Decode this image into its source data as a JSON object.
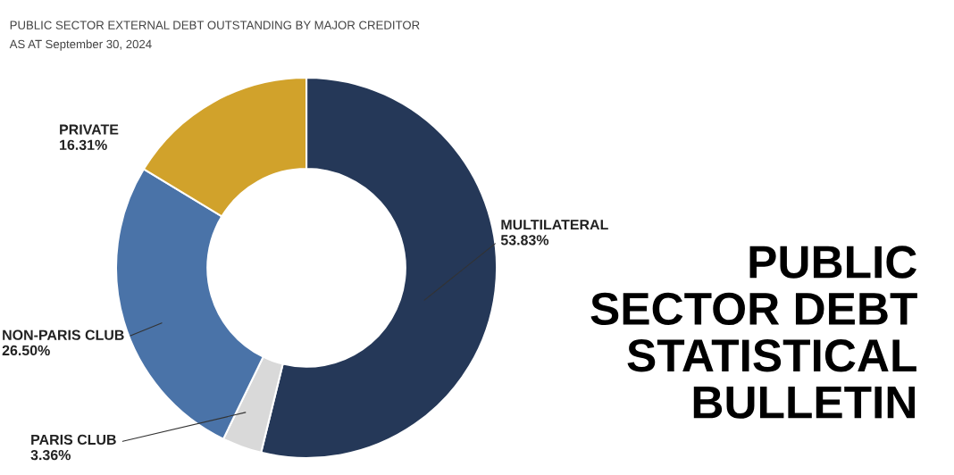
{
  "chart_data": {
    "type": "donut",
    "title": "PUBLIC SECTOR EXTERNAL DEBT OUTSTANDING BY MAJOR CREDITOR",
    "subtitle": "AS AT September 30, 2024",
    "categories": [
      "MULTILATERAL",
      "PARIS CLUB",
      "NON-PARIS CLUB",
      "PRIVATE"
    ],
    "values": [
      53.83,
      3.36,
      26.5,
      16.31
    ],
    "value_labels": [
      "53.83%",
      "3.36%",
      "26.50%",
      "16.31%"
    ],
    "colors": [
      "#253858",
      "#d9d9d9",
      "#4a73a8",
      "#d1a22b"
    ],
    "annotations": [
      "PUBLIC\nSECTOR DEBT\nSTATISTICAL\nBULLETIN"
    ],
    "legend": false
  }
}
